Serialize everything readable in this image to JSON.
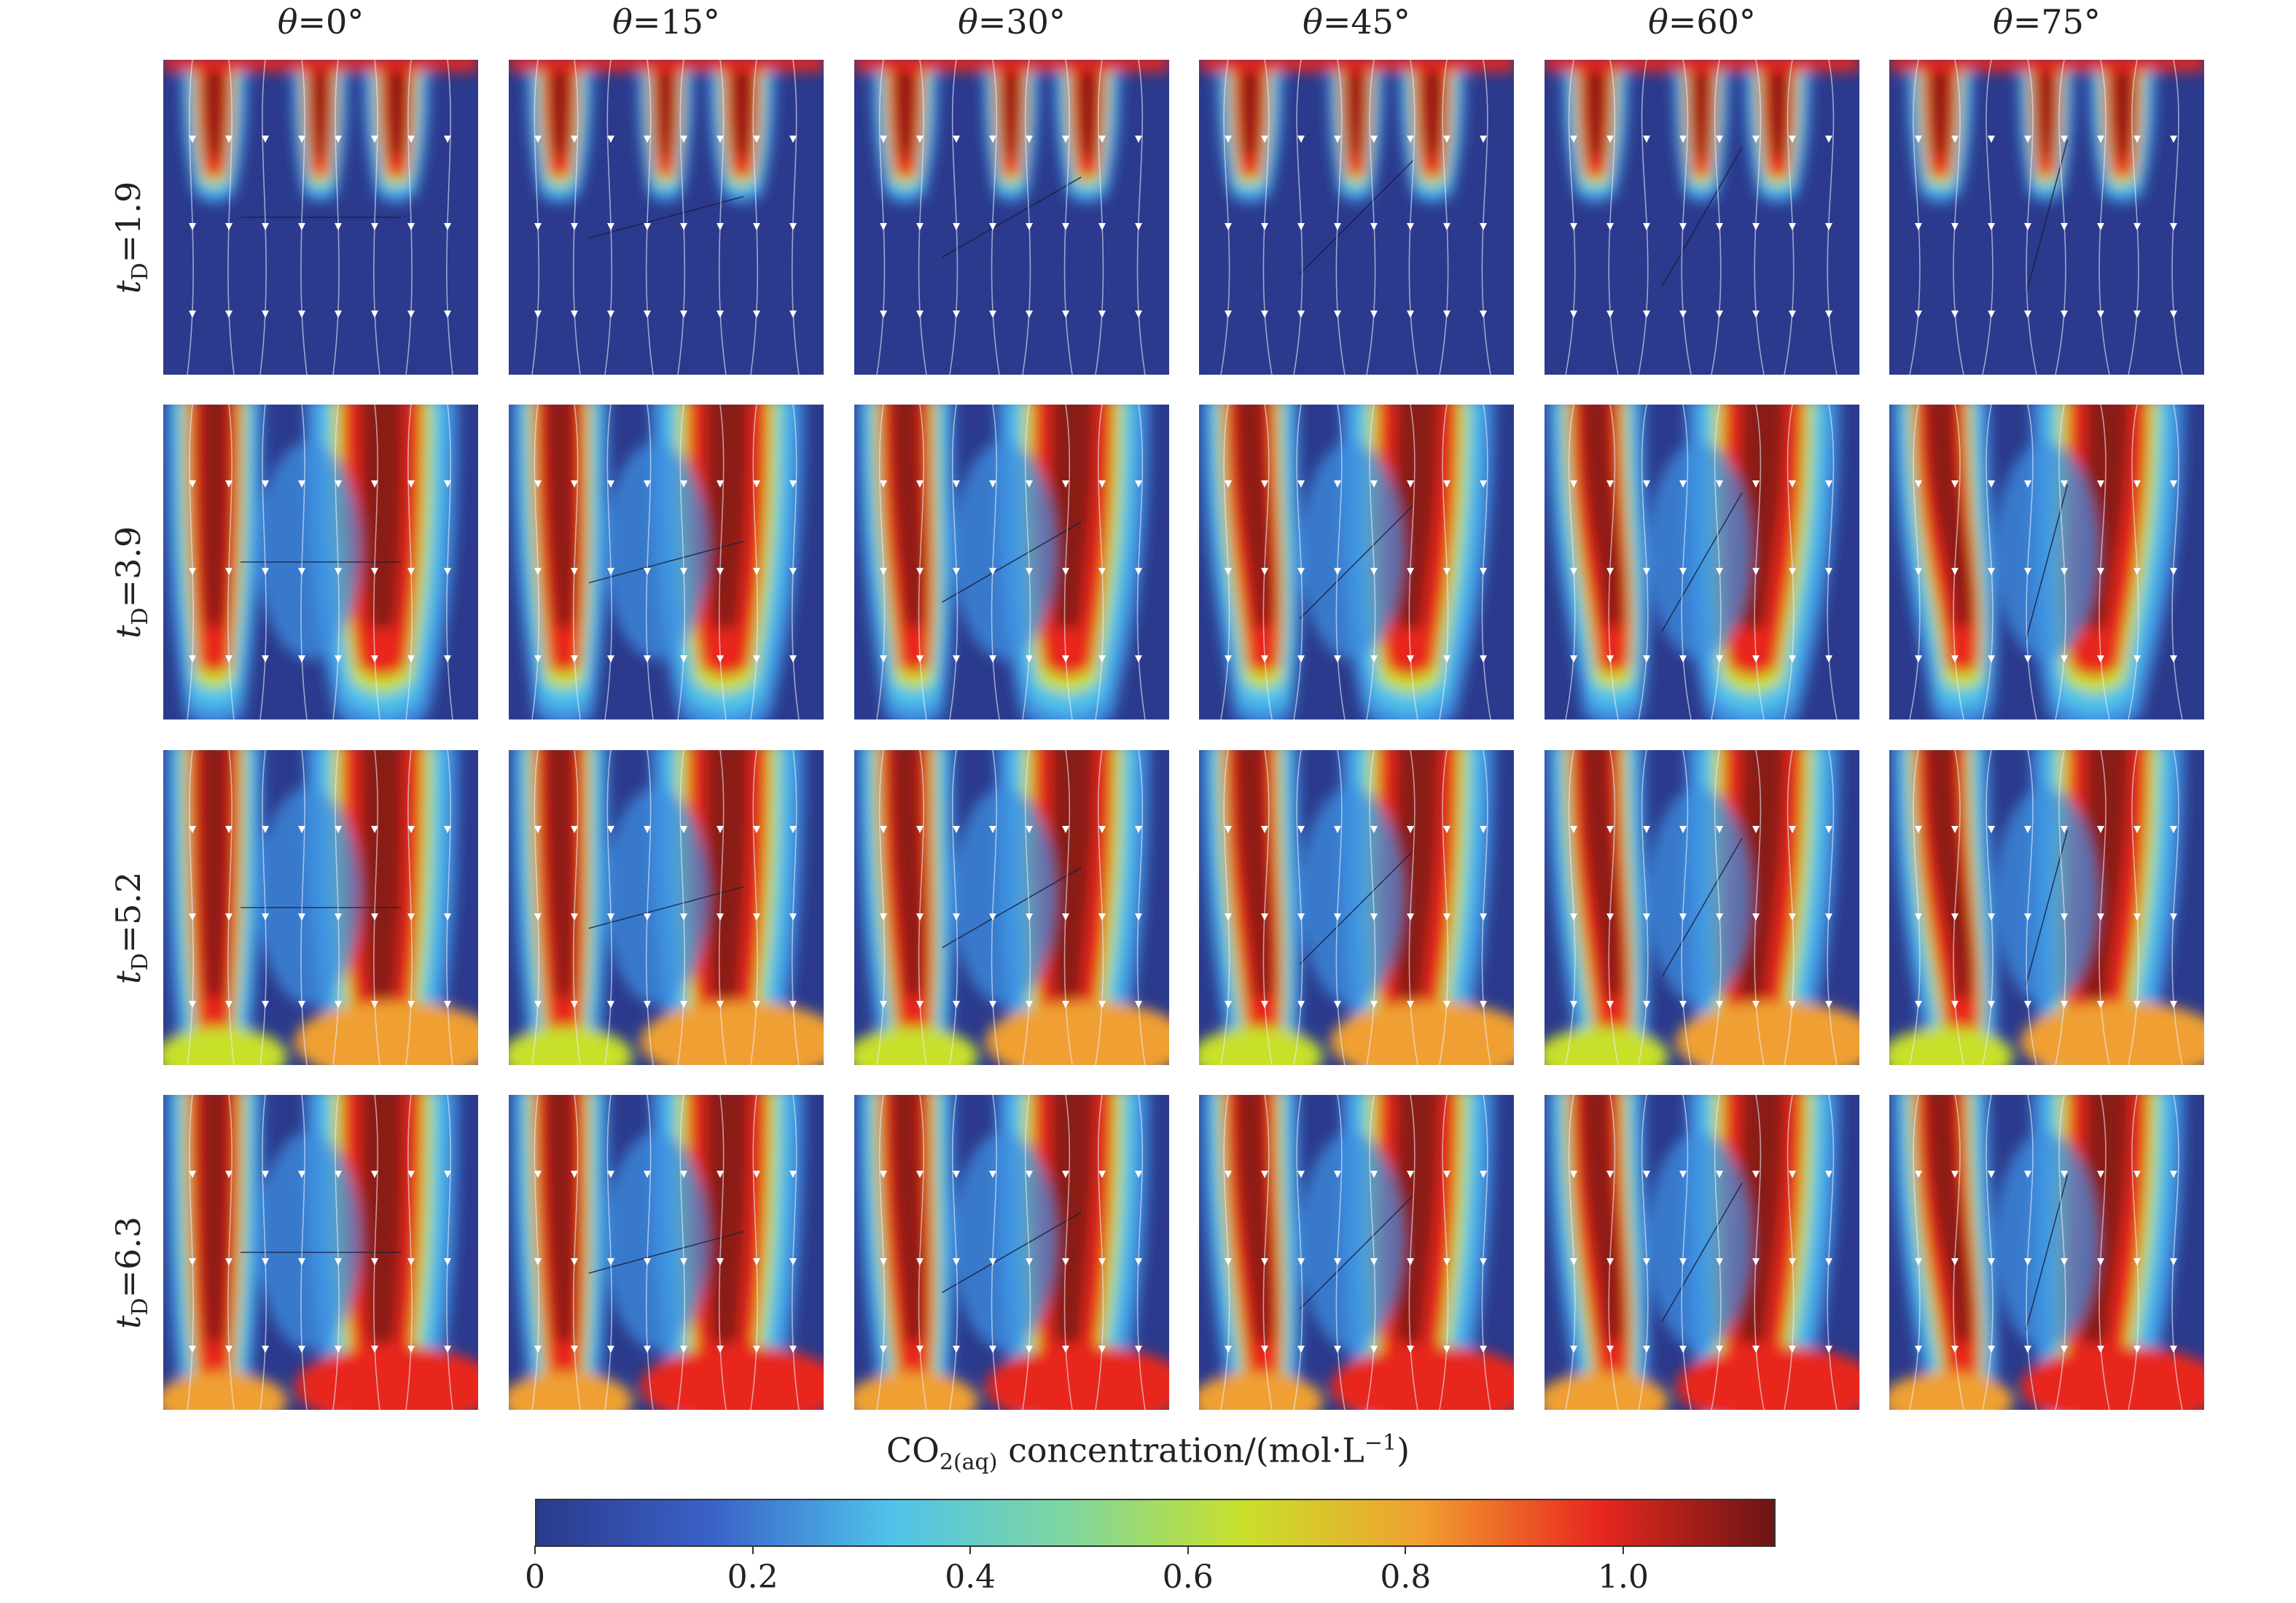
{
  "figure": {
    "theta_symbol": "θ",
    "time_symbol": "t",
    "time_subscript": "D",
    "columns": [
      {
        "value": "=0°"
      },
      {
        "value": "=15°"
      },
      {
        "value": "=30°"
      },
      {
        "value": "=45°"
      },
      {
        "value": "=60°"
      },
      {
        "value": "=75°"
      }
    ],
    "rows": [
      {
        "value": "=1.9"
      },
      {
        "value": "=3.9"
      },
      {
        "value": "=5.2"
      },
      {
        "value": "=6.3"
      }
    ],
    "angles_deg": [
      0,
      15,
      30,
      45,
      60,
      75
    ],
    "times": [
      1.9,
      3.9,
      5.2,
      6.3
    ]
  },
  "colorbar": {
    "title_main": "CO",
    "title_sub1": "2(aq)",
    "title_rest": " concentration/(mol·L",
    "title_sup": "−1",
    "title_end": ")",
    "range": [
      0,
      1.14
    ],
    "ticks": [
      {
        "value": 0,
        "label": "0"
      },
      {
        "value": 0.2,
        "label": "0.2"
      },
      {
        "value": 0.4,
        "label": "0.4"
      },
      {
        "value": 0.6,
        "label": "0.6"
      },
      {
        "value": 0.8,
        "label": "0.8"
      },
      {
        "value": 1.0,
        "label": "1.0"
      }
    ],
    "colors": [
      "#2b3a8c",
      "#3a62c9",
      "#4fc3ea",
      "#7fd6a0",
      "#c8e02a",
      "#f0a030",
      "#e8281e",
      "#6b1515"
    ]
  }
}
